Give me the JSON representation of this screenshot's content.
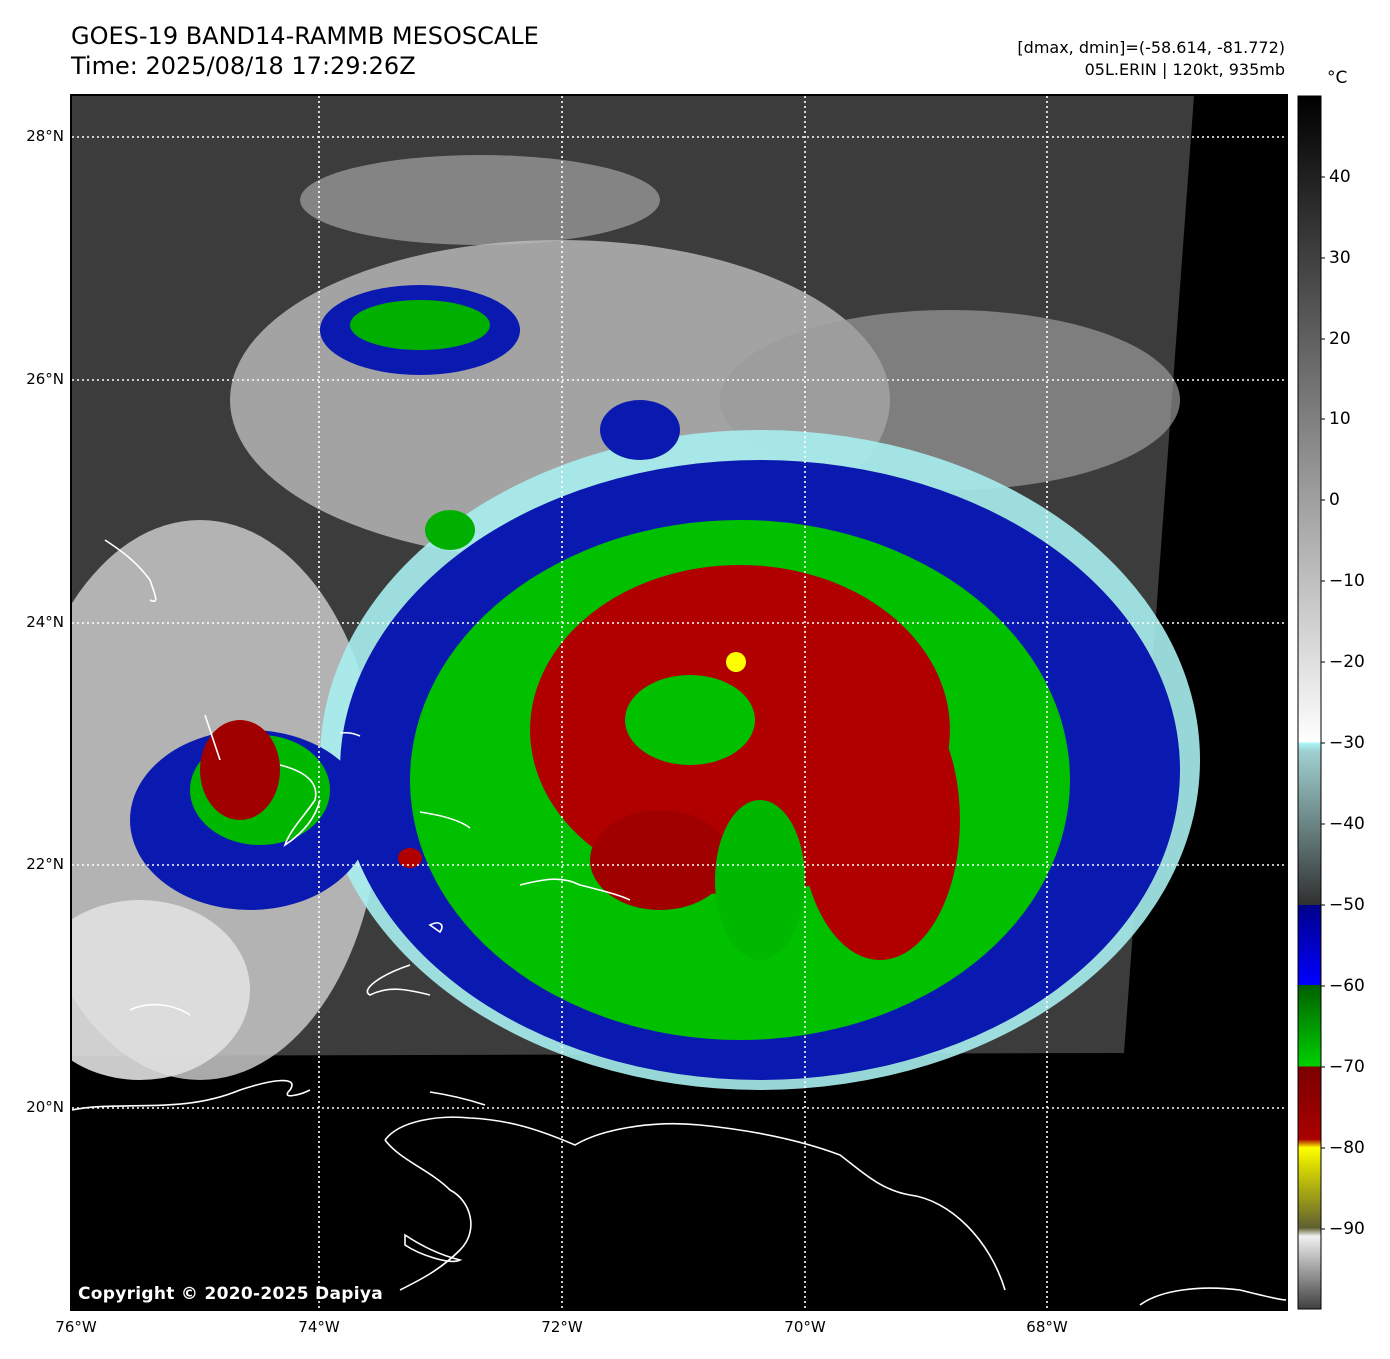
{
  "header": {
    "title_line1": "GOES-19 BAND14-RAMMB MESOSCALE",
    "title_line2": "Time: 2025/08/18 17:29:26Z",
    "stats_line": "[dmax, dmin]=(-58.614, -81.772)",
    "storm_line": "05L.ERIN | 120kt, 935mb"
  },
  "map": {
    "lon_range": [
      -76,
      -66
    ],
    "lat_range": [
      18.3,
      28.35
    ],
    "lat_ticks": [
      {
        "value": 28,
        "label": "28°N"
      },
      {
        "value": 26,
        "label": "26°N"
      },
      {
        "value": 24,
        "label": "24°N"
      },
      {
        "value": 22,
        "label": "22°N"
      },
      {
        "value": 20,
        "label": "20°N"
      }
    ],
    "lon_ticks": [
      {
        "value": -76,
        "label": "76°W"
      },
      {
        "value": -74,
        "label": "74°W"
      },
      {
        "value": -72,
        "label": "72°W"
      },
      {
        "value": -70,
        "label": "70°W"
      },
      {
        "value": -68,
        "label": "68°W"
      }
    ],
    "gridlines": "dotted white",
    "storm_center": {
      "lon": -70.55,
      "lat": 23.65
    },
    "copyright": "Copyright © 2020-2025 Dapiya"
  },
  "colorbar": {
    "unit": "°C",
    "range": [
      -100,
      50
    ],
    "tick_labels": [
      "40",
      "30",
      "20",
      "10",
      "0",
      "−10",
      "−20",
      "−30",
      "−40",
      "−50",
      "−60",
      "−70",
      "−80",
      "−90"
    ],
    "tick_values": [
      40,
      30,
      20,
      10,
      0,
      -10,
      -20,
      -30,
      -40,
      -50,
      -60,
      -70,
      -80,
      -90
    ],
    "colors": {
      "warm": "#000000",
      "gray_mid": "#808080",
      "white": "#ffffff",
      "cyan": "#aaf5f5",
      "blue": "#0a1aa0",
      "green": "#00c800",
      "red": "#aa0000",
      "yellow": "#ffff00"
    }
  }
}
